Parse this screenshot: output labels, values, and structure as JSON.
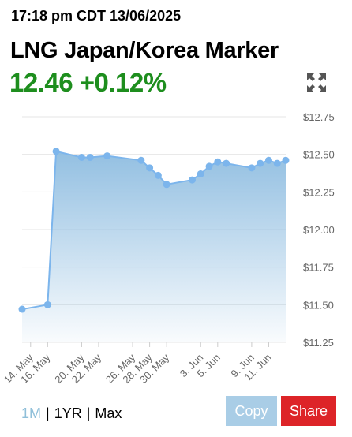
{
  "header": {
    "timestamp": "17:18 pm CDT 13/06/2025",
    "title": "LNG Japan/Korea Marker",
    "price_line": "12.46 +0.12%",
    "price_color": "#1e8e1e"
  },
  "icons": {
    "expand": "expand-arrows-icon"
  },
  "range_selector": {
    "options": [
      "1M",
      "1YR",
      "Max"
    ],
    "active": "1M"
  },
  "buttons": {
    "copy_label": "Copy",
    "share_label": "Share"
  },
  "chart_data": {
    "type": "area",
    "y_ticks": [
      "$12.75",
      "$12.50",
      "$12.25",
      "$12.00",
      "$11.75",
      "$11.50",
      "$11.25"
    ],
    "ylim": [
      11.25,
      12.75
    ],
    "x_ticks": [
      "14. May",
      "16. May",
      "20. May",
      "22. May",
      "26. May",
      "28. May",
      "30. May",
      "3. Jun",
      "5. Jun",
      "9. Jun",
      "11. Jun"
    ],
    "series": [
      {
        "x": [
          "13. May",
          "16. May",
          "17. May",
          "20. May",
          "21. May",
          "23. May",
          "27. May",
          "28. May",
          "29. May",
          "30. May",
          "2. Jun",
          "3. Jun",
          "4. Jun",
          "5. Jun",
          "6. Jun",
          "9. Jun",
          "10. Jun",
          "11. Jun",
          "12. Jun",
          "13. Jun"
        ],
        "values": [
          11.47,
          11.5,
          12.52,
          12.48,
          12.48,
          12.49,
          12.46,
          12.41,
          12.36,
          12.3,
          12.33,
          12.37,
          12.42,
          12.45,
          12.44,
          12.41,
          12.44,
          12.46,
          12.44,
          12.46
        ]
      }
    ],
    "colors": {
      "line": "#7cb5ec",
      "fill_top": "#8dbce0",
      "grid": "#e6e6e6"
    },
    "grid": true,
    "legend": "none"
  }
}
